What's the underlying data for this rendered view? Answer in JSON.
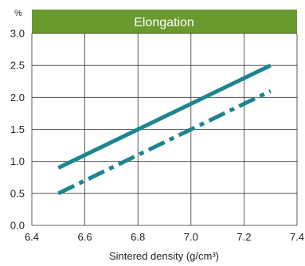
{
  "chart_data": {
    "type": "line",
    "title": "Elongation",
    "xlabel": "Sintered density (g/cm³)",
    "ylabel": "%",
    "xlim": [
      6.4,
      7.4
    ],
    "ylim": [
      0.0,
      3.0
    ],
    "x_ticks": [
      6.4,
      6.6,
      6.8,
      7.0,
      7.2,
      7.4
    ],
    "x_tick_labels": [
      "6.4",
      "6.6",
      "6.8",
      "7.0",
      "7.2",
      "7.4"
    ],
    "y_ticks": [
      0.0,
      0.5,
      1.0,
      1.5,
      2.0,
      2.5,
      3.0
    ],
    "y_tick_labels": [
      "0.0",
      "0.5",
      "1.0",
      "1.5",
      "2.0",
      "2.5",
      "3.0"
    ],
    "grid": true,
    "series": [
      {
        "style": "solid",
        "x": [
          6.5,
          7.3
        ],
        "y": [
          0.9,
          2.5
        ]
      },
      {
        "style": "dash-dot",
        "x": [
          6.5,
          7.3
        ],
        "y": [
          0.5,
          2.1
        ]
      }
    ],
    "colors": {
      "title_bar": "#6a9a2e",
      "line": "#1e8590"
    }
  }
}
